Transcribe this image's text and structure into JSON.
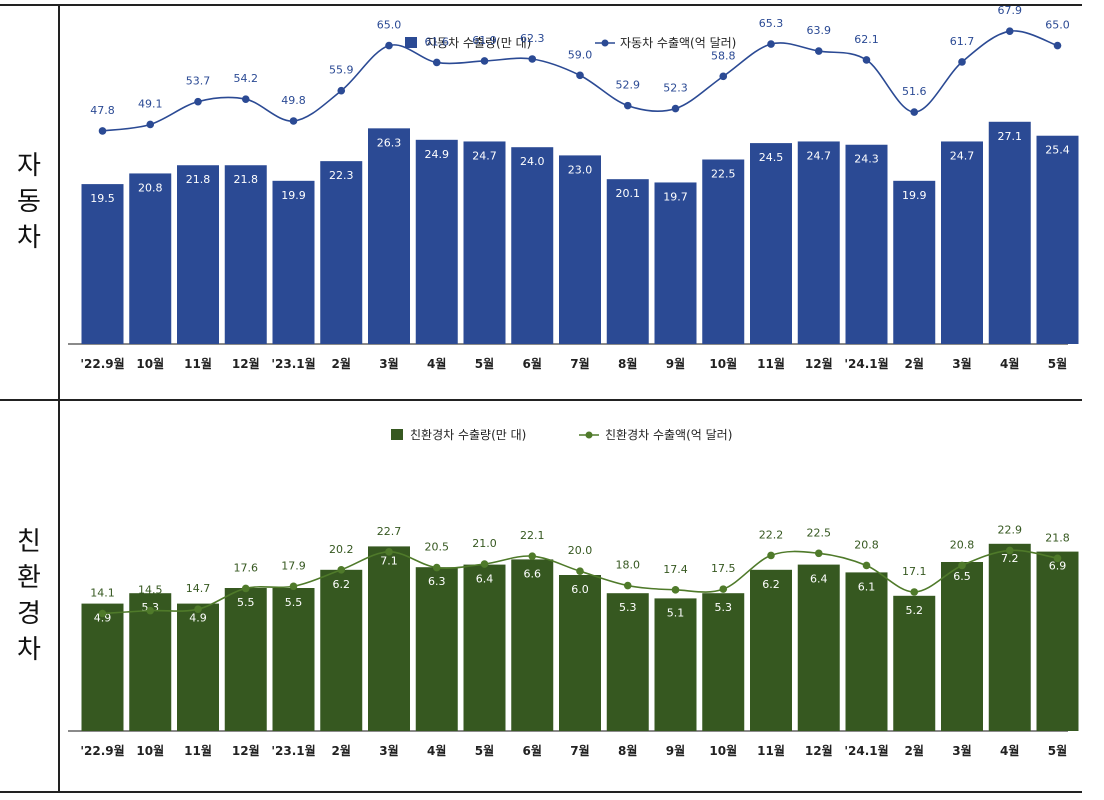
{
  "panels": [
    {
      "label_chars": [
        "자",
        "동",
        "차"
      ],
      "colors": {
        "bar": "#2b4a94",
        "line": "#2b4a94",
        "bar_text": "#ffffff",
        "line_label": "#2b4a94"
      }
    },
    {
      "label_chars": [
        "친",
        "환",
        "경",
        "차"
      ],
      "colors": {
        "bar": "#365820",
        "line": "#4f7a2a",
        "bar_text": "#ffffff",
        "line_label": "#365820"
      }
    }
  ],
  "chart_data": [
    {
      "type": "bar",
      "categories": [
        "'22.9월",
        "10월",
        "11월",
        "12월",
        "'23.1월",
        "2월",
        "3월",
        "4월",
        "5월",
        "6월",
        "7월",
        "8월",
        "9월",
        "10월",
        "11월",
        "12월",
        "'24.1월",
        "2월",
        "3월",
        "4월",
        "5월"
      ],
      "series": [
        {
          "name": "자동차 수출량(만 대)",
          "type": "bar",
          "values": [
            19.5,
            20.8,
            21.8,
            21.8,
            19.9,
            22.3,
            26.3,
            24.9,
            24.7,
            24.0,
            23.0,
            20.1,
            19.7,
            22.5,
            24.5,
            24.7,
            24.3,
            19.9,
            24.7,
            27.1,
            25.4
          ]
        },
        {
          "name": "자동차 수출액(억 달러)",
          "type": "line",
          "values": [
            47.8,
            49.1,
            53.7,
            54.2,
            49.8,
            55.9,
            65.0,
            61.6,
            61.9,
            62.3,
            59.0,
            52.9,
            52.3,
            58.8,
            65.3,
            63.9,
            62.1,
            51.6,
            61.7,
            67.9,
            65.0
          ]
        }
      ],
      "legend_position": "top",
      "grid": false
    },
    {
      "type": "bar",
      "categories": [
        "'22.9월",
        "10월",
        "11월",
        "12월",
        "'23.1월",
        "2월",
        "3월",
        "4월",
        "5월",
        "6월",
        "7월",
        "8월",
        "9월",
        "10월",
        "11월",
        "12월",
        "'24.1월",
        "2월",
        "3월",
        "4월",
        "5월"
      ],
      "series": [
        {
          "name": "친환경차 수출량(만 대)",
          "type": "bar",
          "values": [
            4.9,
            5.3,
            4.9,
            5.5,
            5.5,
            6.2,
            7.1,
            6.3,
            6.4,
            6.6,
            6.0,
            5.3,
            5.1,
            5.3,
            6.2,
            6.4,
            6.1,
            5.2,
            6.5,
            7.2,
            6.9
          ]
        },
        {
          "name": "친환경차 수출액(억 달러)",
          "type": "line",
          "values": [
            14.1,
            14.5,
            14.7,
            17.6,
            17.9,
            20.2,
            22.7,
            20.5,
            21.0,
            22.1,
            20.0,
            18.0,
            17.4,
            17.5,
            22.2,
            22.5,
            20.8,
            17.1,
            20.8,
            22.9,
            21.8
          ]
        }
      ],
      "legend_position": "top",
      "grid": false
    }
  ]
}
